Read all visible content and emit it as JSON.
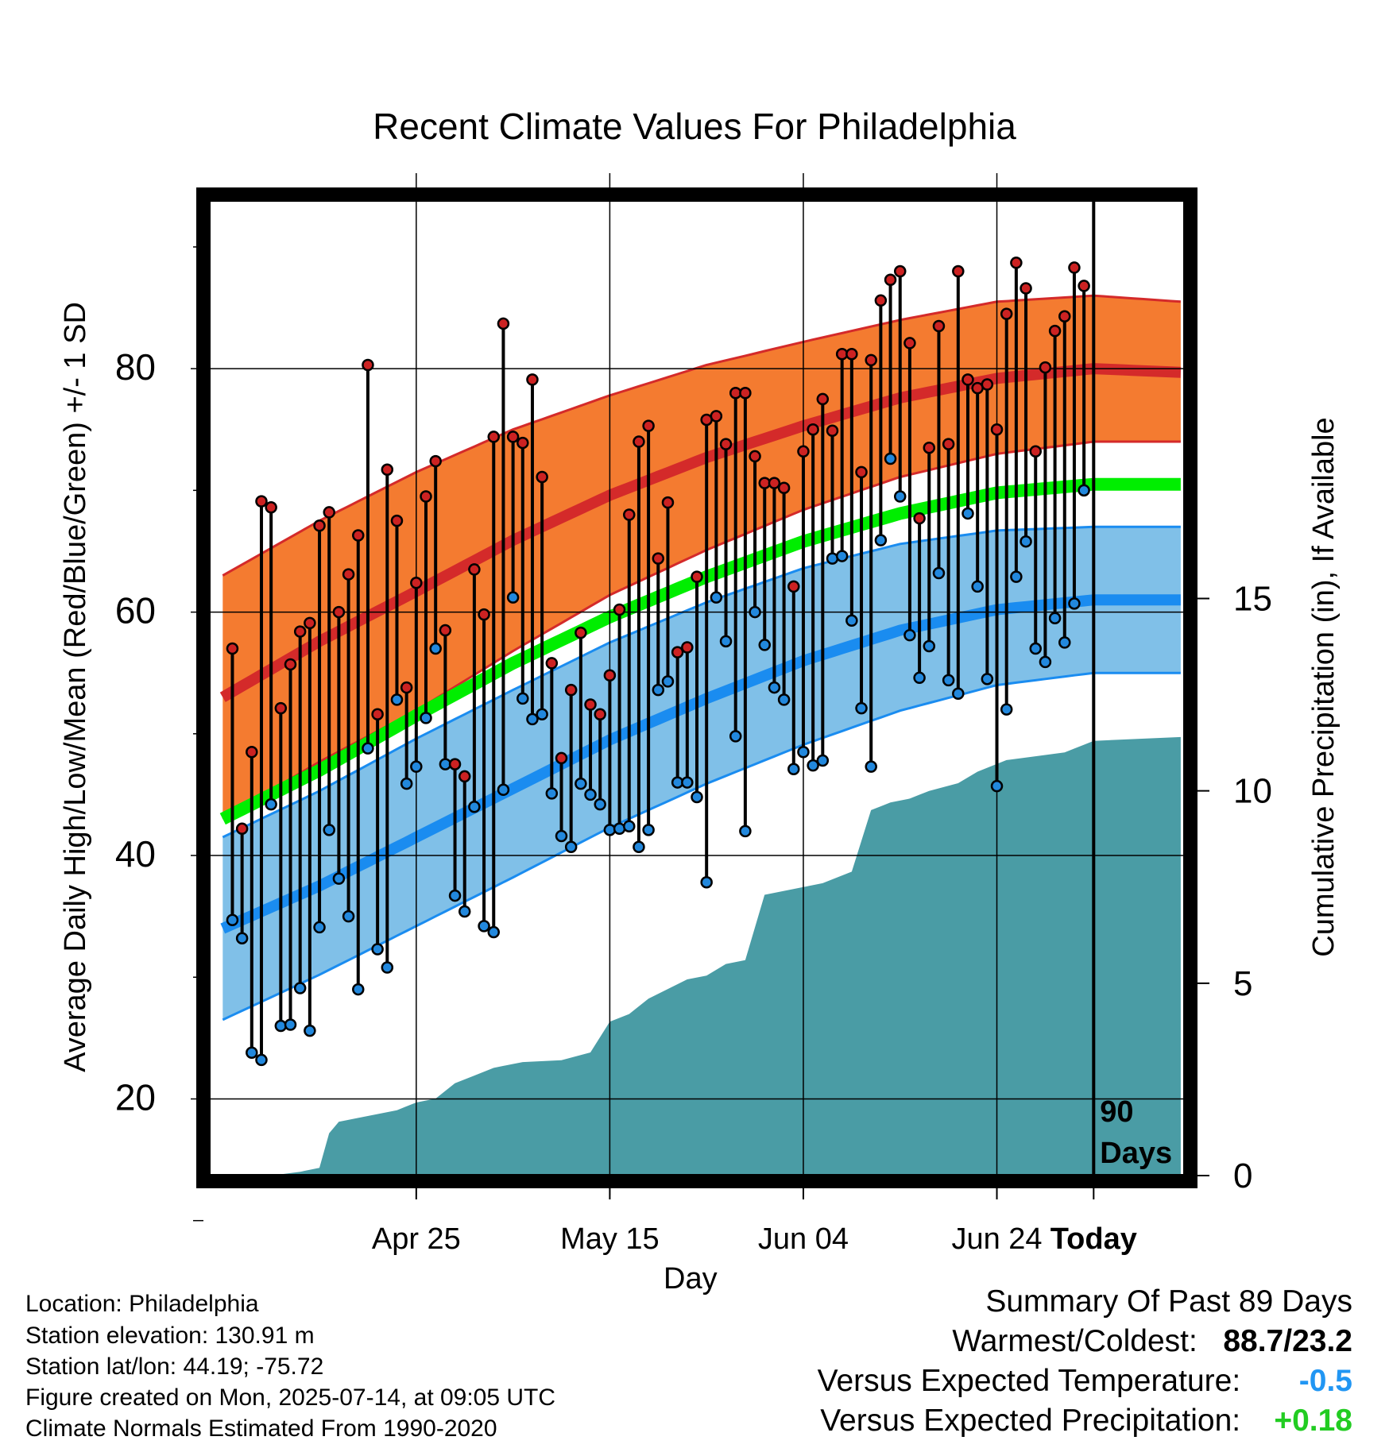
{
  "title": "Recent Climate Values For Philadelphia",
  "chart_data": {
    "type": "line",
    "title": "Recent Climate Values For Philadelphia",
    "xlabel": "Day",
    "ylabel_left": "Average Daily High/Low/Mean (Red/Blue/Green) +/- 1 SD",
    "ylabel_right": "Cumulative Precipitation (in), If Available",
    "x_ticks": [
      "Apr 25",
      "May 15",
      "Jun 04",
      "Jun 24",
      "Today"
    ],
    "y_ticks_left": [
      20,
      40,
      60,
      80
    ],
    "y_ticks_right": [
      0,
      5,
      10,
      15
    ],
    "ylim_left": [
      13.7,
      94.3
    ],
    "ylim_right": [
      0,
      25.5
    ],
    "xlim_days": [
      -91.5,
      9.5
    ],
    "today_marker": "90\nDays",
    "colors": {
      "high_band": "#f47b30",
      "high_line": "#d42a2a",
      "low_band": "#80c0e8",
      "low_line": "#1a8cf0",
      "mean_line": "#00ee00",
      "precip": "#4a9ca5",
      "high_dot": "#cc2222",
      "low_dot": "#2288dd"
    },
    "normals": {
      "days": [
        -90,
        -80,
        -70,
        -60,
        -50,
        -40,
        -30,
        -20,
        -10,
        0,
        9
      ],
      "high_mean": [
        53,
        57.6,
        61.7,
        65.9,
        69.6,
        72.7,
        75.3,
        77.6,
        79.2,
        80.0,
        79.7
      ],
      "high_upper": [
        63,
        67.5,
        71.5,
        75.0,
        77.8,
        80.3,
        82.2,
        84.0,
        85.5,
        86.0,
        85.5
      ],
      "high_lower": [
        43,
        47.7,
        51.9,
        56.8,
        61.4,
        65.1,
        68.4,
        71.1,
        73.0,
        74.0,
        74.0
      ],
      "mean": [
        43,
        47,
        51.5,
        55.8,
        59.6,
        62.9,
        65.8,
        68.1,
        69.8,
        70.5,
        70.5
      ],
      "low_mean": [
        34,
        37.5,
        41.5,
        45.5,
        49.5,
        52.9,
        56.0,
        58.5,
        60.2,
        61.0,
        61.0
      ],
      "low_upper": [
        41.5,
        45.3,
        49.6,
        53.6,
        57.5,
        60.8,
        63.6,
        65.6,
        66.7,
        67.0,
        67.0
      ],
      "low_lower": [
        26.5,
        30.2,
        34.2,
        38.2,
        42.3,
        45.9,
        49.1,
        51.9,
        54.0,
        55.0,
        55.0
      ]
    },
    "series": [
      {
        "name": "High",
        "values": [
          57.0,
          42.2,
          48.5,
          69.1,
          68.6,
          52.1,
          55.7,
          58.4,
          59.1,
          67.1,
          68.2,
          60.0,
          63.1,
          66.3,
          80.3,
          51.6,
          71.7,
          67.5,
          53.8,
          62.4,
          69.5,
          72.4,
          58.5,
          47.5,
          46.5,
          63.5,
          59.8,
          74.4,
          83.7,
          74.4,
          73.9,
          79.1,
          71.1,
          55.8,
          48.0,
          53.6,
          58.3,
          52.4,
          51.6,
          54.8,
          60.2,
          68.0,
          74.0,
          75.3,
          64.4,
          69.0,
          56.7,
          57.1,
          62.9,
          75.8,
          76.1,
          73.8,
          78.0,
          78.0,
          72.8,
          70.6,
          70.6,
          70.2,
          62.1,
          73.2,
          75.0,
          77.5,
          74.9,
          81.2,
          81.2,
          71.5,
          80.7,
          85.6,
          87.3,
          88.0,
          82.1,
          67.7,
          73.5,
          83.5,
          73.8,
          88.0,
          79.1,
          78.4,
          78.7,
          75.0,
          84.5,
          88.7,
          86.6,
          73.2,
          80.1,
          83.1,
          84.3,
          88.3,
          86.8
        ]
      },
      {
        "name": "Low",
        "values": [
          34.7,
          33.2,
          23.8,
          23.2,
          44.2,
          26.0,
          26.1,
          29.1,
          25.6,
          34.1,
          42.1,
          38.1,
          35.0,
          29.0,
          48.8,
          32.3,
          30.8,
          52.8,
          45.9,
          47.3,
          51.3,
          57.0,
          47.5,
          36.7,
          35.4,
          44.0,
          34.2,
          33.7,
          45.4,
          61.2,
          52.9,
          51.2,
          51.6,
          45.1,
          41.6,
          40.7,
          45.9,
          45.0,
          44.2,
          42.1,
          42.2,
          42.4,
          40.7,
          42.1,
          53.6,
          54.3,
          46.0,
          46.0,
          44.8,
          37.8,
          61.2,
          57.6,
          49.8,
          42.0,
          60.0,
          57.3,
          53.8,
          52.8,
          47.1,
          48.5,
          47.4,
          47.8,
          64.4,
          64.6,
          59.3,
          52.1,
          47.3,
          65.9,
          72.6,
          69.5,
          58.1,
          54.6,
          57.2,
          63.2,
          54.4,
          53.3,
          68.1,
          62.1,
          54.5,
          45.7,
          52.0,
          62.9,
          65.8,
          57.0,
          55.9,
          59.5,
          57.5,
          60.7,
          70.0
        ]
      }
    ],
    "precip": {
      "days": [
        -90,
        -85,
        -82,
        -80,
        -79,
        -78,
        -76,
        -72,
        -70,
        -68,
        -66,
        -64,
        -62,
        -60,
        -59,
        -55,
        -52,
        -50,
        -48,
        -46,
        -42,
        -40,
        -38,
        -36,
        -34,
        -32,
        -30,
        -28,
        -25,
        -23,
        -22,
        -21,
        -19,
        -18,
        -17,
        -14,
        -12,
        -10,
        -9,
        -6,
        -3,
        -2,
        -1,
        0,
        9
      ],
      "cum": [
        0,
        0,
        0.1,
        0.2,
        1.1,
        1.4,
        1.5,
        1.7,
        1.9,
        2.0,
        2.4,
        2.6,
        2.8,
        2.9,
        2.95,
        3.0,
        3.2,
        4.0,
        4.2,
        4.6,
        5.1,
        5.2,
        5.5,
        5.6,
        7.3,
        7.4,
        7.5,
        7.6,
        7.9,
        9.5,
        9.6,
        9.7,
        9.8,
        9.9,
        10.0,
        10.2,
        10.5,
        10.7,
        10.8,
        10.9,
        11.0,
        11.1,
        11.2,
        11.3,
        11.4
      ]
    }
  },
  "summary": {
    "heading": "Summary Of Past 89 Days",
    "warm_cold_label": "Warmest/Coldest:",
    "warm_cold_value": "88.7/23.2",
    "temp_label": "Versus Expected Temperature:",
    "temp_value": "-0.5",
    "temp_color": "#2196f3",
    "precip_label": "Versus Expected Precipitation:",
    "precip_value": "+0.18",
    "precip_color": "#22cc22"
  },
  "info": {
    "location": "Location: Philadelphia",
    "elevation": "Station elevation: 130.91 m",
    "latlon": "Station lat/lon: 44.19; -75.72",
    "created": "Figure created on Mon, 2025-07-14, at 09:05 UTC",
    "normals": "Climate Normals Estimated From 1990-2020"
  }
}
